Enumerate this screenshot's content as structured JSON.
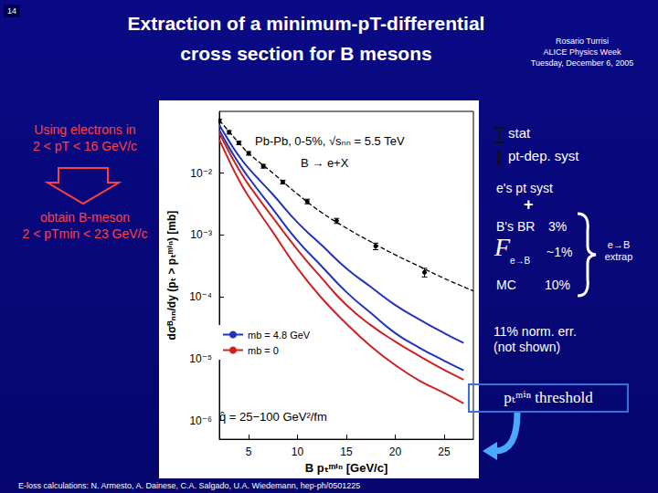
{
  "slide": {
    "number": "14",
    "title": [
      "Extraction of a minimum-pT-differential",
      "cross section for B mesons"
    ],
    "author": [
      "Rosario Turrisi",
      "ALICE Physics Week",
      "Tuesday, December 6, 2005"
    ],
    "left_top": [
      "Using electrons in",
      "2 < pT < 16 GeV/c"
    ],
    "left_bottom": [
      "obtain B-meson",
      "2 < pTmin < 23 GeV/c"
    ],
    "stat": "stat",
    "syst": "pt-dep. syst",
    "e_syst": "e's pt syst",
    "plus": "+",
    "br": "B's BR",
    "br_value": "3%",
    "f_symbol": "F",
    "f_sub": "e→B",
    "f_value": "~1%",
    "mc": "MC",
    "mc_value": "10%",
    "extrap": [
      "e→B",
      "extrap"
    ],
    "norm": [
      "11% norm. err.",
      "(not shown)"
    ],
    "threshold": "pₜᵐⁱⁿ threshold",
    "footer": "E-loss calculations: N. Armesto, A. Dainese, C.A. Salgado, U.A. Wiedemann, hep-ph/0501225"
  },
  "chart_data": {
    "type": "line",
    "annotations": [
      "Pb-Pb, 0-5%, √sₙₙ = 5.5 TeV",
      "B → e+X",
      "q̂ = 25−100 GeV²/fm"
    ],
    "x_label": "B pₜᵐⁱⁿ [GeV/c]",
    "y_label": "dσᴮₙₙ/dy (pₜ > pₜᵐⁱⁿ) [mb]",
    "xlim": [
      2,
      28
    ],
    "xticks": [
      5,
      10,
      15,
      20,
      25
    ],
    "ylim": [
      5e-07,
      0.1
    ],
    "yticks": [
      {
        "value": 1e-06,
        "label": "10⁻⁶"
      },
      {
        "value": 1e-05,
        "label": "10⁻⁵"
      },
      {
        "value": 0.0001,
        "label": "10⁻⁴"
      },
      {
        "value": 0.001,
        "label": "10⁻³"
      },
      {
        "value": 0.01,
        "label": "10⁻²"
      }
    ],
    "log": "y",
    "grid": false,
    "legend": "center left",
    "series": [
      {
        "type": "scatter",
        "color": "#000000",
        "marker": "circle",
        "x": [
          2,
          3,
          4,
          5,
          6.5,
          8.5,
          11,
          14,
          18,
          23
        ],
        "values": [
          0.07,
          0.046,
          0.031,
          0.021,
          0.013,
          0.0072,
          0.0035,
          0.0017,
          0.00066,
          0.00025
        ],
        "errors": [
          0.005,
          0.003,
          0.002,
          0.0014,
          0.0009,
          0.0005,
          0.0003,
          0.00016,
          8e-05,
          4e-05
        ]
      },
      {
        "type": "line",
        "color": "#000000",
        "line_style": "dashed",
        "x": [
          2,
          3,
          4,
          5,
          7.5,
          10,
          12.5,
          15,
          17.5,
          20,
          22.5,
          25,
          28
        ],
        "values": [
          0.072,
          0.047,
          0.031,
          0.021,
          0.01,
          0.0046,
          0.0023,
          0.0013,
          0.00078,
          0.00048,
          0.00031,
          0.0002,
          0.000125
        ]
      },
      {
        "name": "mb = 4.8 GeV",
        "type": "line",
        "color": "#2233bb",
        "line_style": "solid",
        "x": [
          2,
          3,
          4,
          5,
          7.5,
          10,
          12.5,
          15,
          17.5,
          20,
          22.5,
          25,
          27
        ],
        "values": [
          0.06,
          0.033,
          0.019,
          0.012,
          0.0045,
          0.0016,
          0.00068,
          0.00029,
          0.000145,
          7.4e-05,
          4.3e-05,
          2.6e-05,
          1.8e-05
        ]
      },
      {
        "name": "mb = 4.8 GeV",
        "type": "line",
        "color": "#2233bb",
        "line_style": "solid",
        "x": [
          2,
          3,
          4,
          5,
          7.5,
          10,
          12.5,
          15,
          17.5,
          20,
          22.5,
          25,
          27
        ],
        "values": [
          0.05,
          0.026,
          0.0145,
          0.0085,
          0.0026,
          0.00081,
          0.00031,
          0.00012,
          5.5e-05,
          2.6e-05,
          1.5e-05,
          9.3e-06,
          6.5e-06
        ]
      },
      {
        "name": "mb = 0",
        "type": "line",
        "color": "#cc2222",
        "line_style": "solid",
        "x": [
          2,
          3,
          4,
          5,
          7.5,
          10,
          12.5,
          15,
          17.5,
          20,
          22.5,
          25,
          27
        ],
        "values": [
          0.045,
          0.022,
          0.0115,
          0.0065,
          0.0019,
          0.00058,
          0.0002,
          7.4e-05,
          3.5e-05,
          1.9e-05,
          1.1e-05,
          6.6e-06,
          4.6e-06
        ]
      },
      {
        "name": "mb = 0",
        "type": "line",
        "color": "#cc2222",
        "line_style": "solid",
        "x": [
          2,
          3,
          4,
          5,
          7.5,
          10,
          12.5,
          15,
          17.5,
          20,
          22.5,
          25,
          27
        ],
        "values": [
          0.035,
          0.016,
          0.0078,
          0.0042,
          0.0011,
          0.00029,
          9.5e-05,
          3.7e-05,
          1.6e-05,
          7.9e-06,
          4.4e-06,
          2.8e-06,
          1.9e-06
        ]
      }
    ]
  }
}
